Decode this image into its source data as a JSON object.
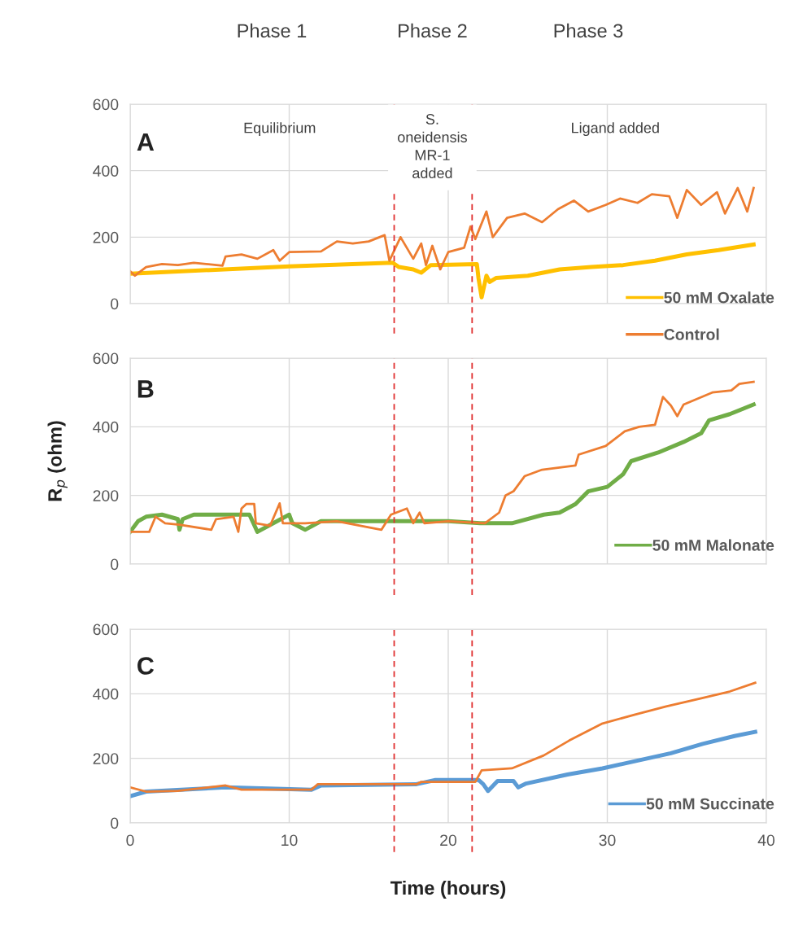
{
  "chart_data": [
    {
      "type": "line",
      "xlim": [
        0,
        40
      ],
      "xticks": [
        0,
        10,
        20,
        30,
        40
      ],
      "ylim": [
        0,
        600
      ],
      "yticks": [
        0,
        200,
        400,
        600
      ],
      "grid": true,
      "tick_labels": "y",
      "legend": "bottom right",
      "annotations": [
        "Phase 1",
        "Phase 2",
        "Phase 3",
        "A",
        "Equilibrium",
        "S. oneidensis MR-1 added",
        "Ligand added"
      ],
      "ref_lines": [
        {
          "axis": "x",
          "value": 16.6,
          "color": "#e03030",
          "line_style": "dashed"
        },
        {
          "axis": "x",
          "value": 21.5,
          "color": "#e03030",
          "line_style": "dashed"
        }
      ],
      "series": [
        {
          "name": "50 mM Oxalate",
          "color": "#ffc000",
          "x": [
            0,
            10,
            16.5,
            16.9,
            17.8,
            18.3,
            18.9,
            21.8,
            21.9,
            22.1,
            22.4,
            22.6,
            23,
            25,
            27,
            29,
            31,
            33,
            35,
            37,
            39.2
          ],
          "values": [
            90,
            112,
            123,
            110,
            103,
            93,
            116,
            119,
            77,
            19,
            84,
            65,
            77,
            84,
            103,
            110,
            116,
            129,
            148,
            161,
            178
          ]
        },
        {
          "name": "Control",
          "color": "#ed7d31",
          "x": [
            0,
            0.3,
            1,
            2,
            3,
            4,
            5.8,
            6,
            7,
            8,
            9,
            9.4,
            10,
            12,
            13,
            14,
            15,
            16,
            16.3,
            17,
            17.8,
            18.3,
            18.6,
            19,
            19.5,
            20,
            21,
            21.4,
            21.7,
            22.4,
            22.8,
            23.7,
            24.8,
            25.9,
            26.9,
            27.9,
            28.8,
            29.9,
            30.8,
            31.9,
            32.8,
            33.9,
            34.4,
            35,
            35.9,
            36.9,
            37.4,
            38.2,
            38.8,
            39.2
          ],
          "values": [
            97,
            84,
            110,
            119,
            116,
            123,
            114,
            142,
            148,
            135,
            161,
            129,
            155,
            157,
            187,
            181,
            187,
            206,
            129,
            200,
            135,
            181,
            116,
            174,
            103,
            155,
            168,
            232,
            194,
            277,
            200,
            258,
            271,
            245,
            284,
            310,
            277,
            297,
            316,
            303,
            329,
            323,
            258,
            342,
            297,
            335,
            271,
            348,
            277,
            348
          ]
        }
      ]
    },
    {
      "type": "line",
      "xlim": [
        0,
        40
      ],
      "xticks": [
        0,
        10,
        20,
        30,
        40
      ],
      "ylim": [
        0,
        600
      ],
      "yticks": [
        0,
        200,
        400,
        600
      ],
      "grid": true,
      "tick_labels": "y",
      "legend": "bottom right",
      "ylabel": "R$_{p}$ (ohm)",
      "annotations": [
        "B"
      ],
      "ref_lines": [
        {
          "axis": "x",
          "value": 16.6,
          "color": "#e03030",
          "line_style": "dashed"
        },
        {
          "axis": "x",
          "value": 21.5,
          "color": "#e03030",
          "line_style": "dashed"
        }
      ],
      "series": [
        {
          "name": "50 mM Malonate",
          "color": "#70ad47",
          "x": [
            0,
            0.5,
            1,
            2,
            3,
            3.1,
            3.3,
            4,
            7.5,
            8,
            9,
            10,
            10.2,
            11,
            12,
            15,
            20,
            22,
            24,
            26,
            27,
            28,
            28.8,
            30,
            31,
            31.5,
            33.2,
            34.8,
            35.9,
            36.4,
            37.7,
            39.2
          ],
          "values": [
            94,
            125,
            138,
            144,
            131,
            100,
            131,
            144,
            144,
            94,
            119,
            144,
            119,
            100,
            125,
            125,
            125,
            119,
            119,
            144,
            150,
            175,
            212,
            225,
            262,
            300,
            325,
            356,
            381,
            419,
            437,
            465
          ]
        },
        {
          "color": "#ed7d31",
          "x": [
            0,
            1.2,
            1.6,
            2.2,
            3.1,
            5.1,
            5.4,
            6.5,
            6.8,
            7,
            7.3,
            7.8,
            7.9,
            8.8,
            9.4,
            9.6,
            11,
            13,
            15.8,
            16.4,
            17.4,
            17.8,
            18.2,
            18.5,
            20,
            22.3,
            23.2,
            23.6,
            24.1,
            24.8,
            25.9,
            28,
            28.2,
            29.9,
            31.1,
            32,
            33,
            33.5,
            34,
            34.4,
            34.8,
            36.6,
            37.8,
            38.3,
            39.2
          ],
          "values": [
            94,
            94,
            138,
            119,
            115,
            100,
            131,
            138,
            94,
            162,
            175,
            175,
            119,
            112,
            177,
            119,
            119,
            125,
            100,
            144,
            162,
            119,
            150,
            119,
            125,
            119,
            150,
            200,
            212,
            256,
            275,
            287,
            319,
            344,
            387,
            400,
            406,
            487,
            462,
            431,
            465,
            500,
            506,
            525,
            531
          ]
        }
      ]
    },
    {
      "type": "line",
      "xlim": [
        0,
        40
      ],
      "xticks": [
        0,
        10,
        20,
        30,
        40
      ],
      "ylim": [
        0,
        600
      ],
      "yticks": [
        0,
        200,
        400,
        600
      ],
      "grid": true,
      "legend": "bottom right",
      "xlabel": "Time (hours)",
      "annotations": [
        "C"
      ],
      "ref_lines": [
        {
          "axis": "x",
          "value": 16.6,
          "color": "#e03030",
          "line_style": "dashed"
        },
        {
          "axis": "x",
          "value": 21.5,
          "color": "#e03030",
          "line_style": "dashed"
        }
      ],
      "series": [
        {
          "name": "50 mM Succinate",
          "color": "#5b9bd5",
          "x": [
            0,
            1,
            6,
            11.4,
            12,
            18,
            19.2,
            21.9,
            22.2,
            22.5,
            23.1,
            24.1,
            24.4,
            24.9,
            27.5,
            29.7,
            31.8,
            34,
            36,
            38,
            39.3
          ],
          "values": [
            83,
            97,
            110,
            103,
            116,
            120,
            133,
            133,
            120,
            99,
            130,
            130,
            110,
            122,
            150,
            169,
            192,
            216,
            245,
            269,
            282
          ]
        },
        {
          "color": "#ed7d31",
          "x": [
            0,
            1,
            3,
            6,
            7,
            11.4,
            11.8,
            18,
            18.3,
            21.7,
            22.1,
            24,
            26,
            27.6,
            29.7,
            31.7,
            33.7,
            35.8,
            37.7,
            39.3
          ],
          "values": [
            110,
            97,
            99,
            116,
            103,
            103,
            120,
            120,
            127,
            127,
            163,
            169,
            209,
            255,
            308,
            335,
            361,
            385,
            407,
            434
          ]
        }
      ]
    }
  ]
}
